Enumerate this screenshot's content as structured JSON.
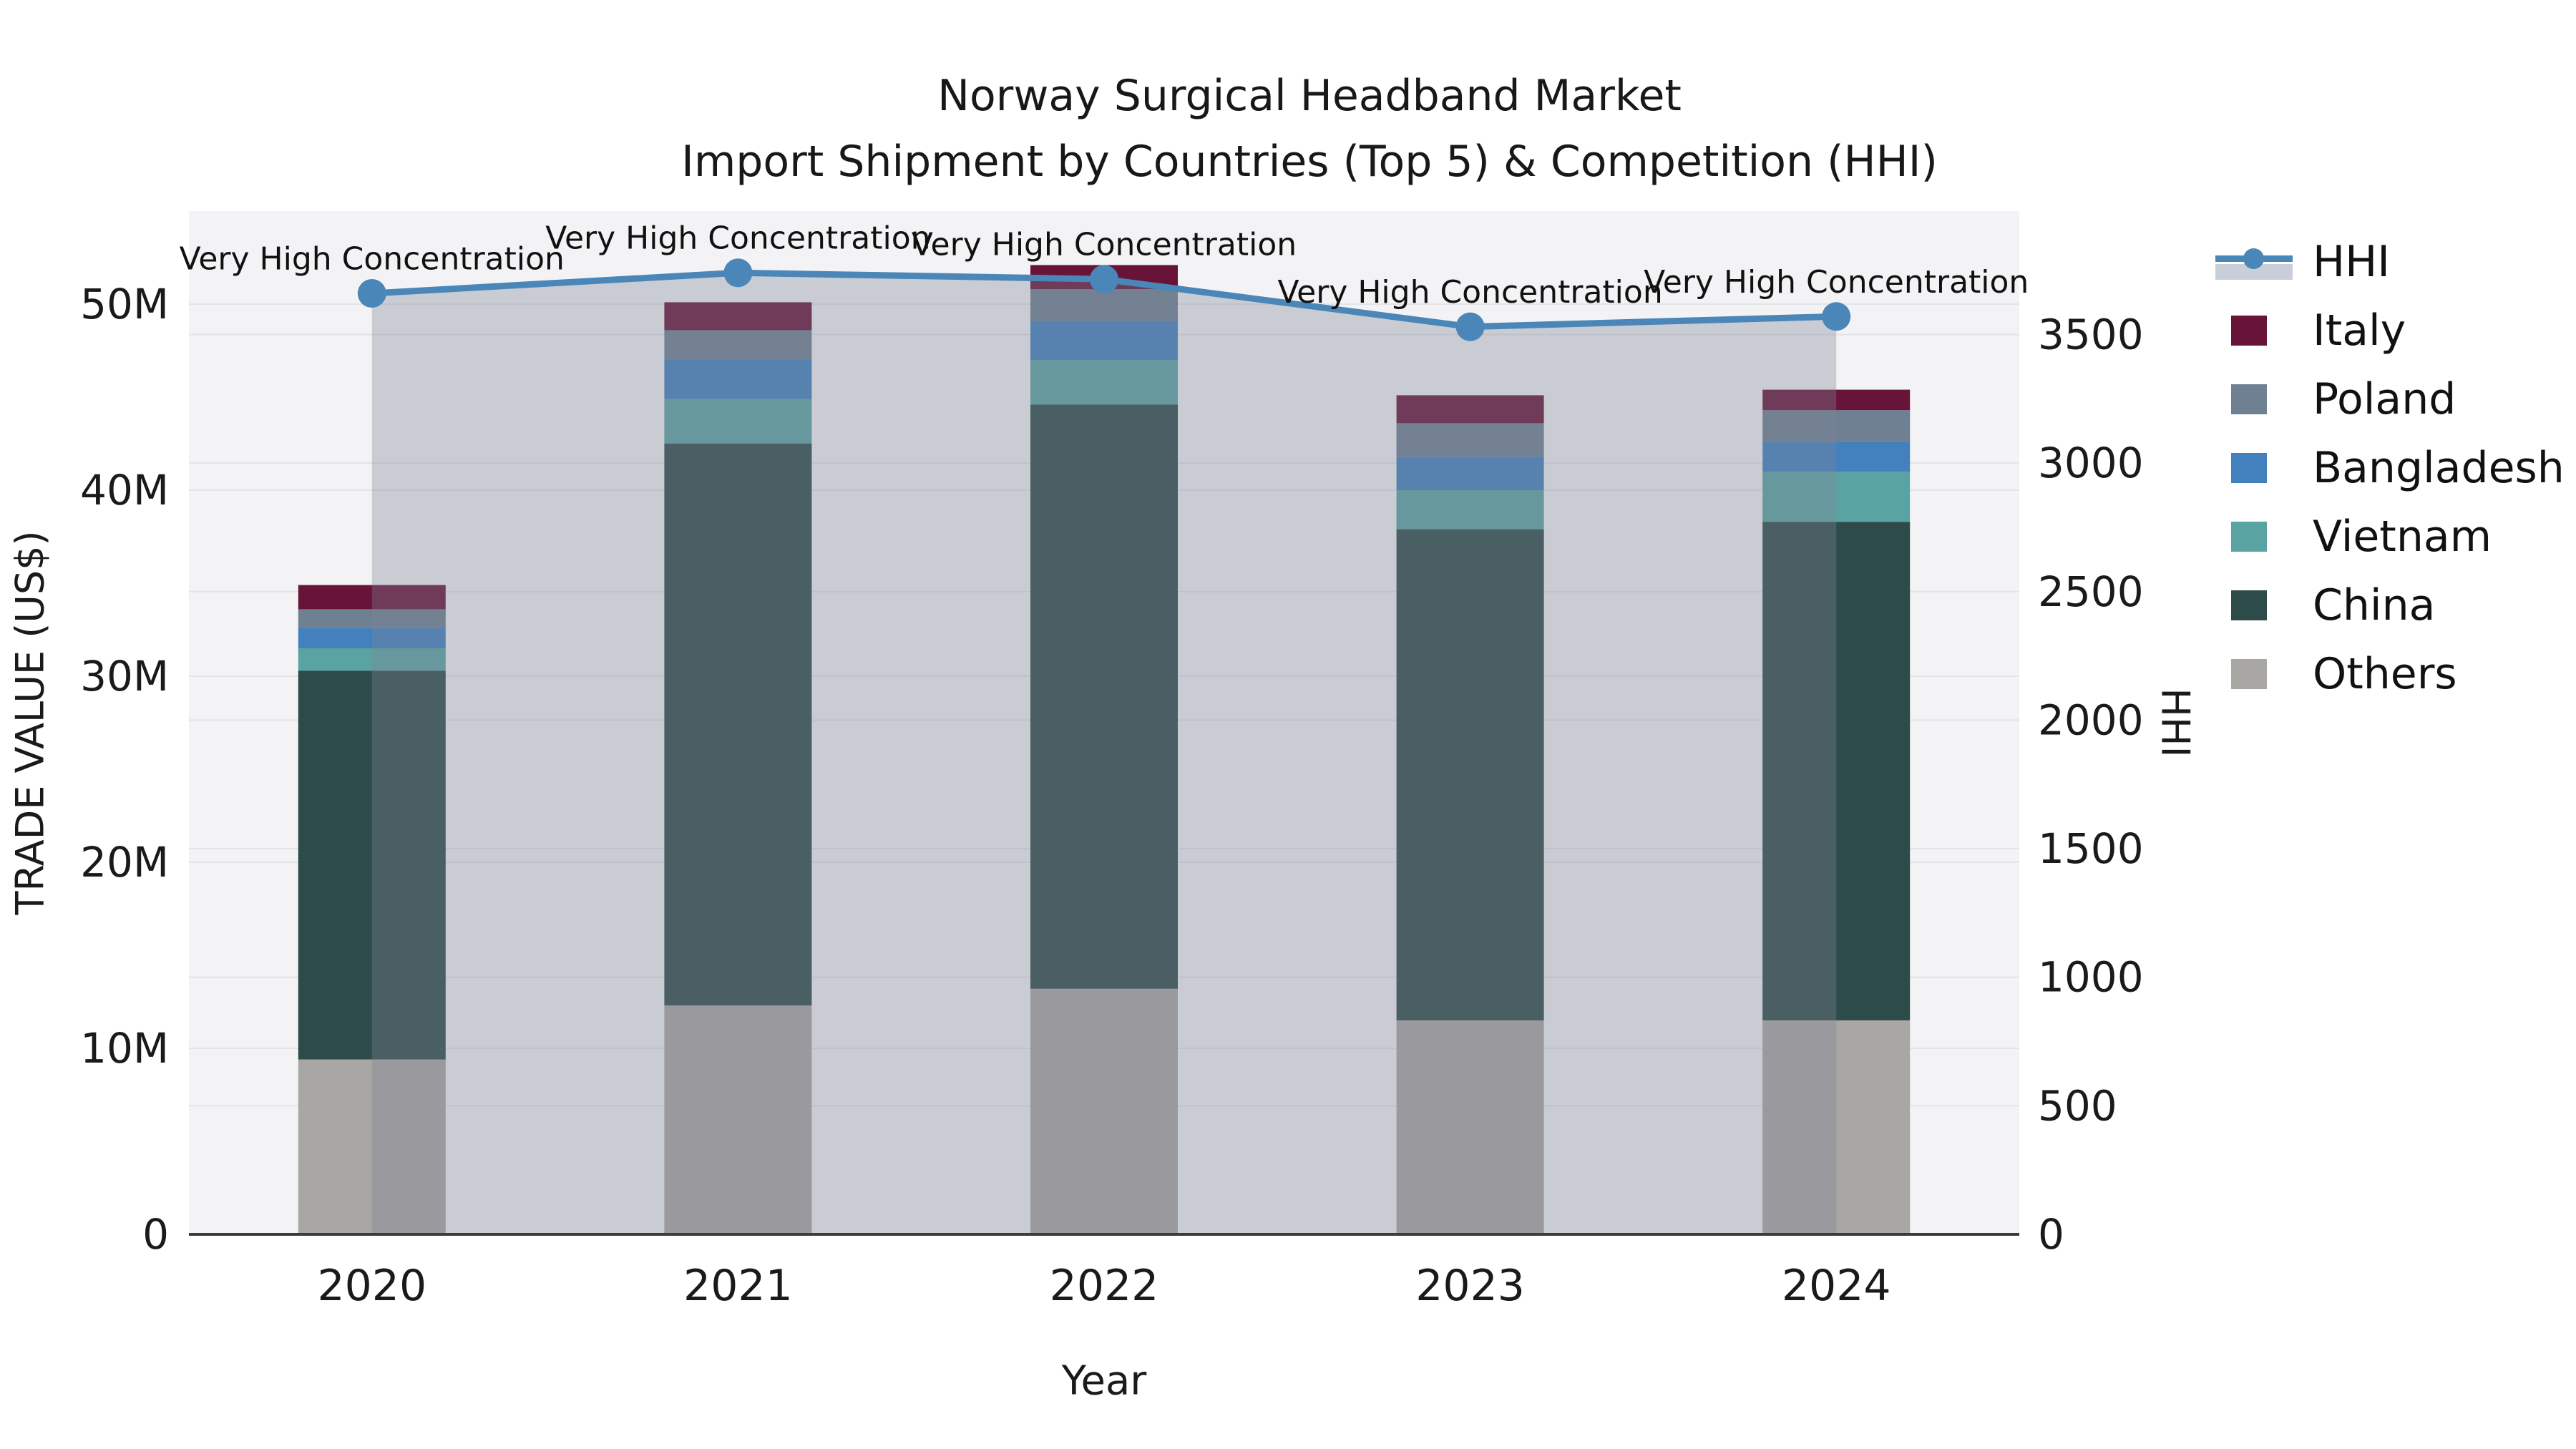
{
  "title": {
    "line1": "Norway Surgical Headband Market",
    "line2": "Import Shipment by Countries (Top 5) & Competition (HHI)"
  },
  "legend": {
    "items": [
      {
        "label": "HHI",
        "type": "line",
        "color": "#4a86b8"
      },
      {
        "label": "Italy",
        "type": "swatch",
        "color": "#681439"
      },
      {
        "label": "Poland",
        "type": "swatch",
        "color": "#6f8093"
      },
      {
        "label": "Bangladesh",
        "type": "swatch",
        "color": "#4281bd"
      },
      {
        "label": "Vietnam",
        "type": "swatch",
        "color": "#5aa3a3"
      },
      {
        "label": "China",
        "type": "swatch",
        "color": "#2d4c49"
      },
      {
        "label": "Others",
        "type": "swatch",
        "color": "#a9a7a3"
      }
    ]
  },
  "chart_data": {
    "type": "bar",
    "subtype": "stacked-bars-with-line-dual-axis",
    "categories": [
      "2020",
      "2021",
      "2022",
      "2023",
      "2024"
    ],
    "value_unit": "M US$",
    "series": [
      {
        "name": "Others",
        "color": "#a9a7a3",
        "values": [
          9.4,
          12.3,
          13.2,
          11.5,
          11.5
        ]
      },
      {
        "name": "China",
        "color": "#2d4c49",
        "values": [
          20.9,
          30.2,
          31.4,
          26.4,
          26.8
        ]
      },
      {
        "name": "Vietnam",
        "color": "#5aa3a3",
        "values": [
          1.2,
          2.4,
          2.4,
          2.1,
          2.7
        ]
      },
      {
        "name": "Bangladesh",
        "color": "#4281bd",
        "values": [
          1.1,
          2.1,
          2.1,
          1.8,
          1.6
        ]
      },
      {
        "name": "Poland",
        "color": "#6f8093",
        "values": [
          1.0,
          1.6,
          1.7,
          1.8,
          1.7
        ]
      },
      {
        "name": "Italy",
        "color": "#681439",
        "values": [
          1.3,
          1.5,
          1.3,
          1.5,
          1.1
        ]
      }
    ],
    "stack_totals": [
      34.9,
      50.1,
      52.1,
      45.1,
      45.4
    ],
    "hhi_line": {
      "name": "HHI",
      "color": "#4a86b8",
      "values": [
        3660,
        3740,
        3715,
        3530,
        3570
      ],
      "area_fill": "rgba(125,132,150,0.35)",
      "annotation": "Very High Concentration"
    },
    "left_axis": {
      "label": "TRADE VALUE (US$)",
      "ticks": [
        0,
        10,
        20,
        30,
        40,
        50
      ],
      "tick_suffix": "M",
      "max": 55
    },
    "right_axis": {
      "label": "HHI",
      "ticks": [
        0,
        500,
        1000,
        1500,
        2000,
        2500,
        3000,
        3500
      ],
      "max": 3980
    },
    "x_axis": {
      "label": "Year"
    },
    "grid": true,
    "legend_position": "right",
    "colors": {
      "plot_bg": "#f3f3f5",
      "gridline": "#e2e3e7",
      "axis_line": "#3b3b3b",
      "text": "#1a1a1a",
      "annotation_text": "#111111"
    }
  }
}
